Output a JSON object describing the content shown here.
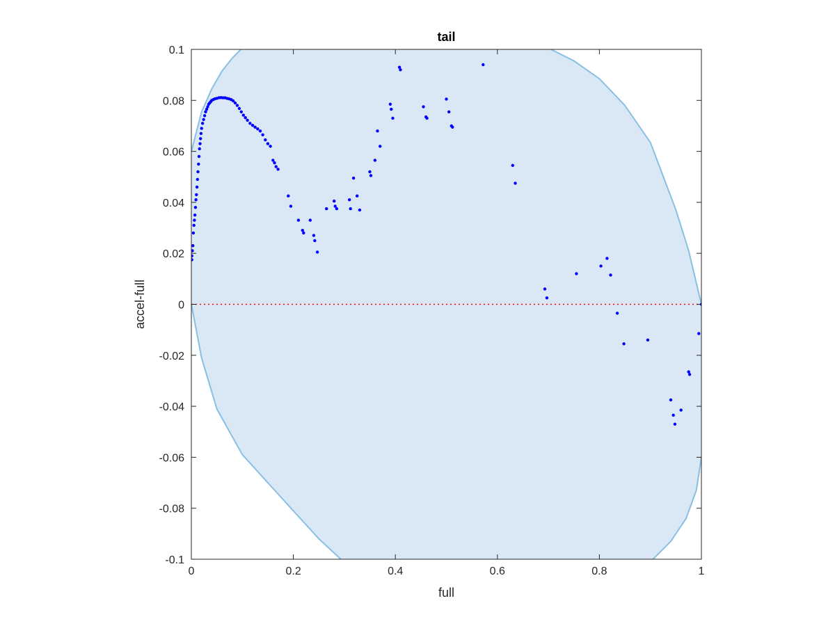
{
  "chart_data": {
    "type": "scatter",
    "title": "tail",
    "xlabel": "full",
    "ylabel": "accel-full",
    "xlim": [
      0,
      1
    ],
    "ylim": [
      -0.1,
      0.1
    ],
    "x_ticks": [
      "0",
      "0.2",
      "0.4",
      "0.6",
      "0.8",
      "1"
    ],
    "y_ticks": [
      "-0.1",
      "-0.08",
      "-0.06",
      "-0.04",
      "-0.02",
      "0",
      "0.02",
      "0.04",
      "0.06",
      "0.08",
      "0.1"
    ],
    "x_tick_values": [
      0,
      0.2,
      0.4,
      0.6,
      0.8,
      1
    ],
    "y_tick_values": [
      -0.1,
      -0.08,
      -0.06,
      -0.04,
      -0.02,
      0,
      0.02,
      0.04,
      0.06,
      0.08,
      0.1
    ],
    "grid": false,
    "reference_line": {
      "y": 0,
      "color": "#ff0000",
      "style": "dotted"
    },
    "region": {
      "description": "shaded elliptical envelope",
      "fill_color": "#d9e8f4",
      "edge_color": "#88bfe3",
      "upper_boundary": [
        [
          0,
          0.06
        ],
        [
          0.02,
          0.0755
        ],
        [
          0.04,
          0.0845
        ],
        [
          0.06,
          0.0915
        ],
        [
          0.08,
          0.0965
        ],
        [
          0.097,
          0.1
        ]
      ],
      "upper_boundary_right": [
        [
          0.705,
          0.1
        ],
        [
          0.75,
          0.0955
        ],
        [
          0.8,
          0.0885
        ],
        [
          0.85,
          0.078
        ],
        [
          0.9,
          0.0635
        ],
        [
          0.95,
          0.037
        ],
        [
          0.975,
          0.021
        ],
        [
          1.0,
          0.0
        ]
      ],
      "lower_boundary": [
        [
          0,
          0
        ],
        [
          0.02,
          -0.021
        ],
        [
          0.05,
          -0.041
        ],
        [
          0.1,
          -0.059
        ],
        [
          0.15,
          -0.07
        ],
        [
          0.2,
          -0.081
        ],
        [
          0.25,
          -0.092
        ],
        [
          0.293,
          -0.1
        ]
      ],
      "lower_boundary_right": [
        [
          0.905,
          -0.1
        ],
        [
          0.94,
          -0.093
        ],
        [
          0.97,
          -0.084
        ],
        [
          0.99,
          -0.073
        ],
        [
          1.0,
          -0.06
        ]
      ]
    },
    "series": [
      {
        "color": "#0000ff",
        "points": [
          [
            0.001,
            0.0175
          ],
          [
            0.001,
            0.019
          ],
          [
            0.002,
            0.021
          ],
          [
            0.003,
            0.023
          ],
          [
            0.004,
            0.028
          ],
          [
            0.005,
            0.031
          ],
          [
            0.006,
            0.033
          ],
          [
            0.007,
            0.035
          ],
          [
            0.008,
            0.038
          ],
          [
            0.009,
            0.041
          ],
          [
            0.01,
            0.043
          ],
          [
            0.011,
            0.046
          ],
          [
            0.012,
            0.049
          ],
          [
            0.013,
            0.052
          ],
          [
            0.014,
            0.055
          ],
          [
            0.015,
            0.058
          ],
          [
            0.016,
            0.061
          ],
          [
            0.017,
            0.063
          ],
          [
            0.018,
            0.065
          ],
          [
            0.019,
            0.067
          ],
          [
            0.02,
            0.069
          ],
          [
            0.022,
            0.071
          ],
          [
            0.024,
            0.0725
          ],
          [
            0.026,
            0.074
          ],
          [
            0.028,
            0.0755
          ],
          [
            0.03,
            0.0765
          ],
          [
            0.032,
            0.0775
          ],
          [
            0.034,
            0.0785
          ],
          [
            0.036,
            0.079
          ],
          [
            0.038,
            0.0795
          ],
          [
            0.04,
            0.08
          ],
          [
            0.043,
            0.0803
          ],
          [
            0.046,
            0.0806
          ],
          [
            0.05,
            0.0808
          ],
          [
            0.054,
            0.081
          ],
          [
            0.058,
            0.0811
          ],
          [
            0.062,
            0.081
          ],
          [
            0.066,
            0.081
          ],
          [
            0.07,
            0.0808
          ],
          [
            0.074,
            0.0806
          ],
          [
            0.078,
            0.0803
          ],
          [
            0.082,
            0.0798
          ],
          [
            0.086,
            0.079
          ],
          [
            0.09,
            0.078
          ],
          [
            0.094,
            0.0768
          ],
          [
            0.098,
            0.0755
          ],
          [
            0.102,
            0.0742
          ],
          [
            0.106,
            0.0732
          ],
          [
            0.11,
            0.0722
          ],
          [
            0.115,
            0.071
          ],
          [
            0.12,
            0.0702
          ],
          [
            0.125,
            0.0695
          ],
          [
            0.13,
            0.0688
          ],
          [
            0.135,
            0.068
          ],
          [
            0.14,
            0.0665
          ],
          [
            0.145,
            0.0645
          ],
          [
            0.15,
            0.063
          ],
          [
            0.155,
            0.062
          ],
          [
            0.16,
            0.0565
          ],
          [
            0.163,
            0.0555
          ],
          [
            0.166,
            0.054
          ],
          [
            0.17,
            0.053
          ],
          [
            0.19,
            0.0425
          ],
          [
            0.195,
            0.0385
          ],
          [
            0.21,
            0.033
          ],
          [
            0.218,
            0.029
          ],
          [
            0.22,
            0.028
          ],
          [
            0.233,
            0.033
          ],
          [
            0.24,
            0.027
          ],
          [
            0.242,
            0.025
          ],
          [
            0.247,
            0.0205
          ],
          [
            0.265,
            0.0375
          ],
          [
            0.28,
            0.0405
          ],
          [
            0.282,
            0.0385
          ],
          [
            0.285,
            0.0375
          ],
          [
            0.31,
            0.041
          ],
          [
            0.312,
            0.0375
          ],
          [
            0.318,
            0.0495
          ],
          [
            0.325,
            0.0425
          ],
          [
            0.33,
            0.037
          ],
          [
            0.35,
            0.052
          ],
          [
            0.352,
            0.0505
          ],
          [
            0.36,
            0.0565
          ],
          [
            0.365,
            0.068
          ],
          [
            0.37,
            0.062
          ],
          [
            0.39,
            0.0785
          ],
          [
            0.392,
            0.0765
          ],
          [
            0.395,
            0.073
          ],
          [
            0.408,
            0.093
          ],
          [
            0.41,
            0.092
          ],
          [
            0.455,
            0.0775
          ],
          [
            0.46,
            0.0735
          ],
          [
            0.462,
            0.073
          ],
          [
            0.5,
            0.0805
          ],
          [
            0.505,
            0.0755
          ],
          [
            0.51,
            0.07
          ],
          [
            0.512,
            0.0695
          ],
          [
            0.572,
            0.094
          ],
          [
            0.63,
            0.0545
          ],
          [
            0.635,
            0.0475
          ],
          [
            0.693,
            0.006
          ],
          [
            0.697,
            0.0025
          ],
          [
            0.755,
            0.012
          ],
          [
            0.803,
            0.015
          ],
          [
            0.815,
            0.018
          ],
          [
            0.822,
            0.0115
          ],
          [
            0.835,
            -0.0035
          ],
          [
            0.848,
            -0.0155
          ],
          [
            0.895,
            -0.014
          ],
          [
            0.94,
            -0.0375
          ],
          [
            0.945,
            -0.0435
          ],
          [
            0.948,
            -0.047
          ],
          [
            0.96,
            -0.0415
          ],
          [
            0.975,
            -0.0265
          ],
          [
            0.977,
            -0.0275
          ],
          [
            0.995,
            -0.0115
          ],
          [
            1.0,
            0.0
          ]
        ]
      }
    ]
  }
}
